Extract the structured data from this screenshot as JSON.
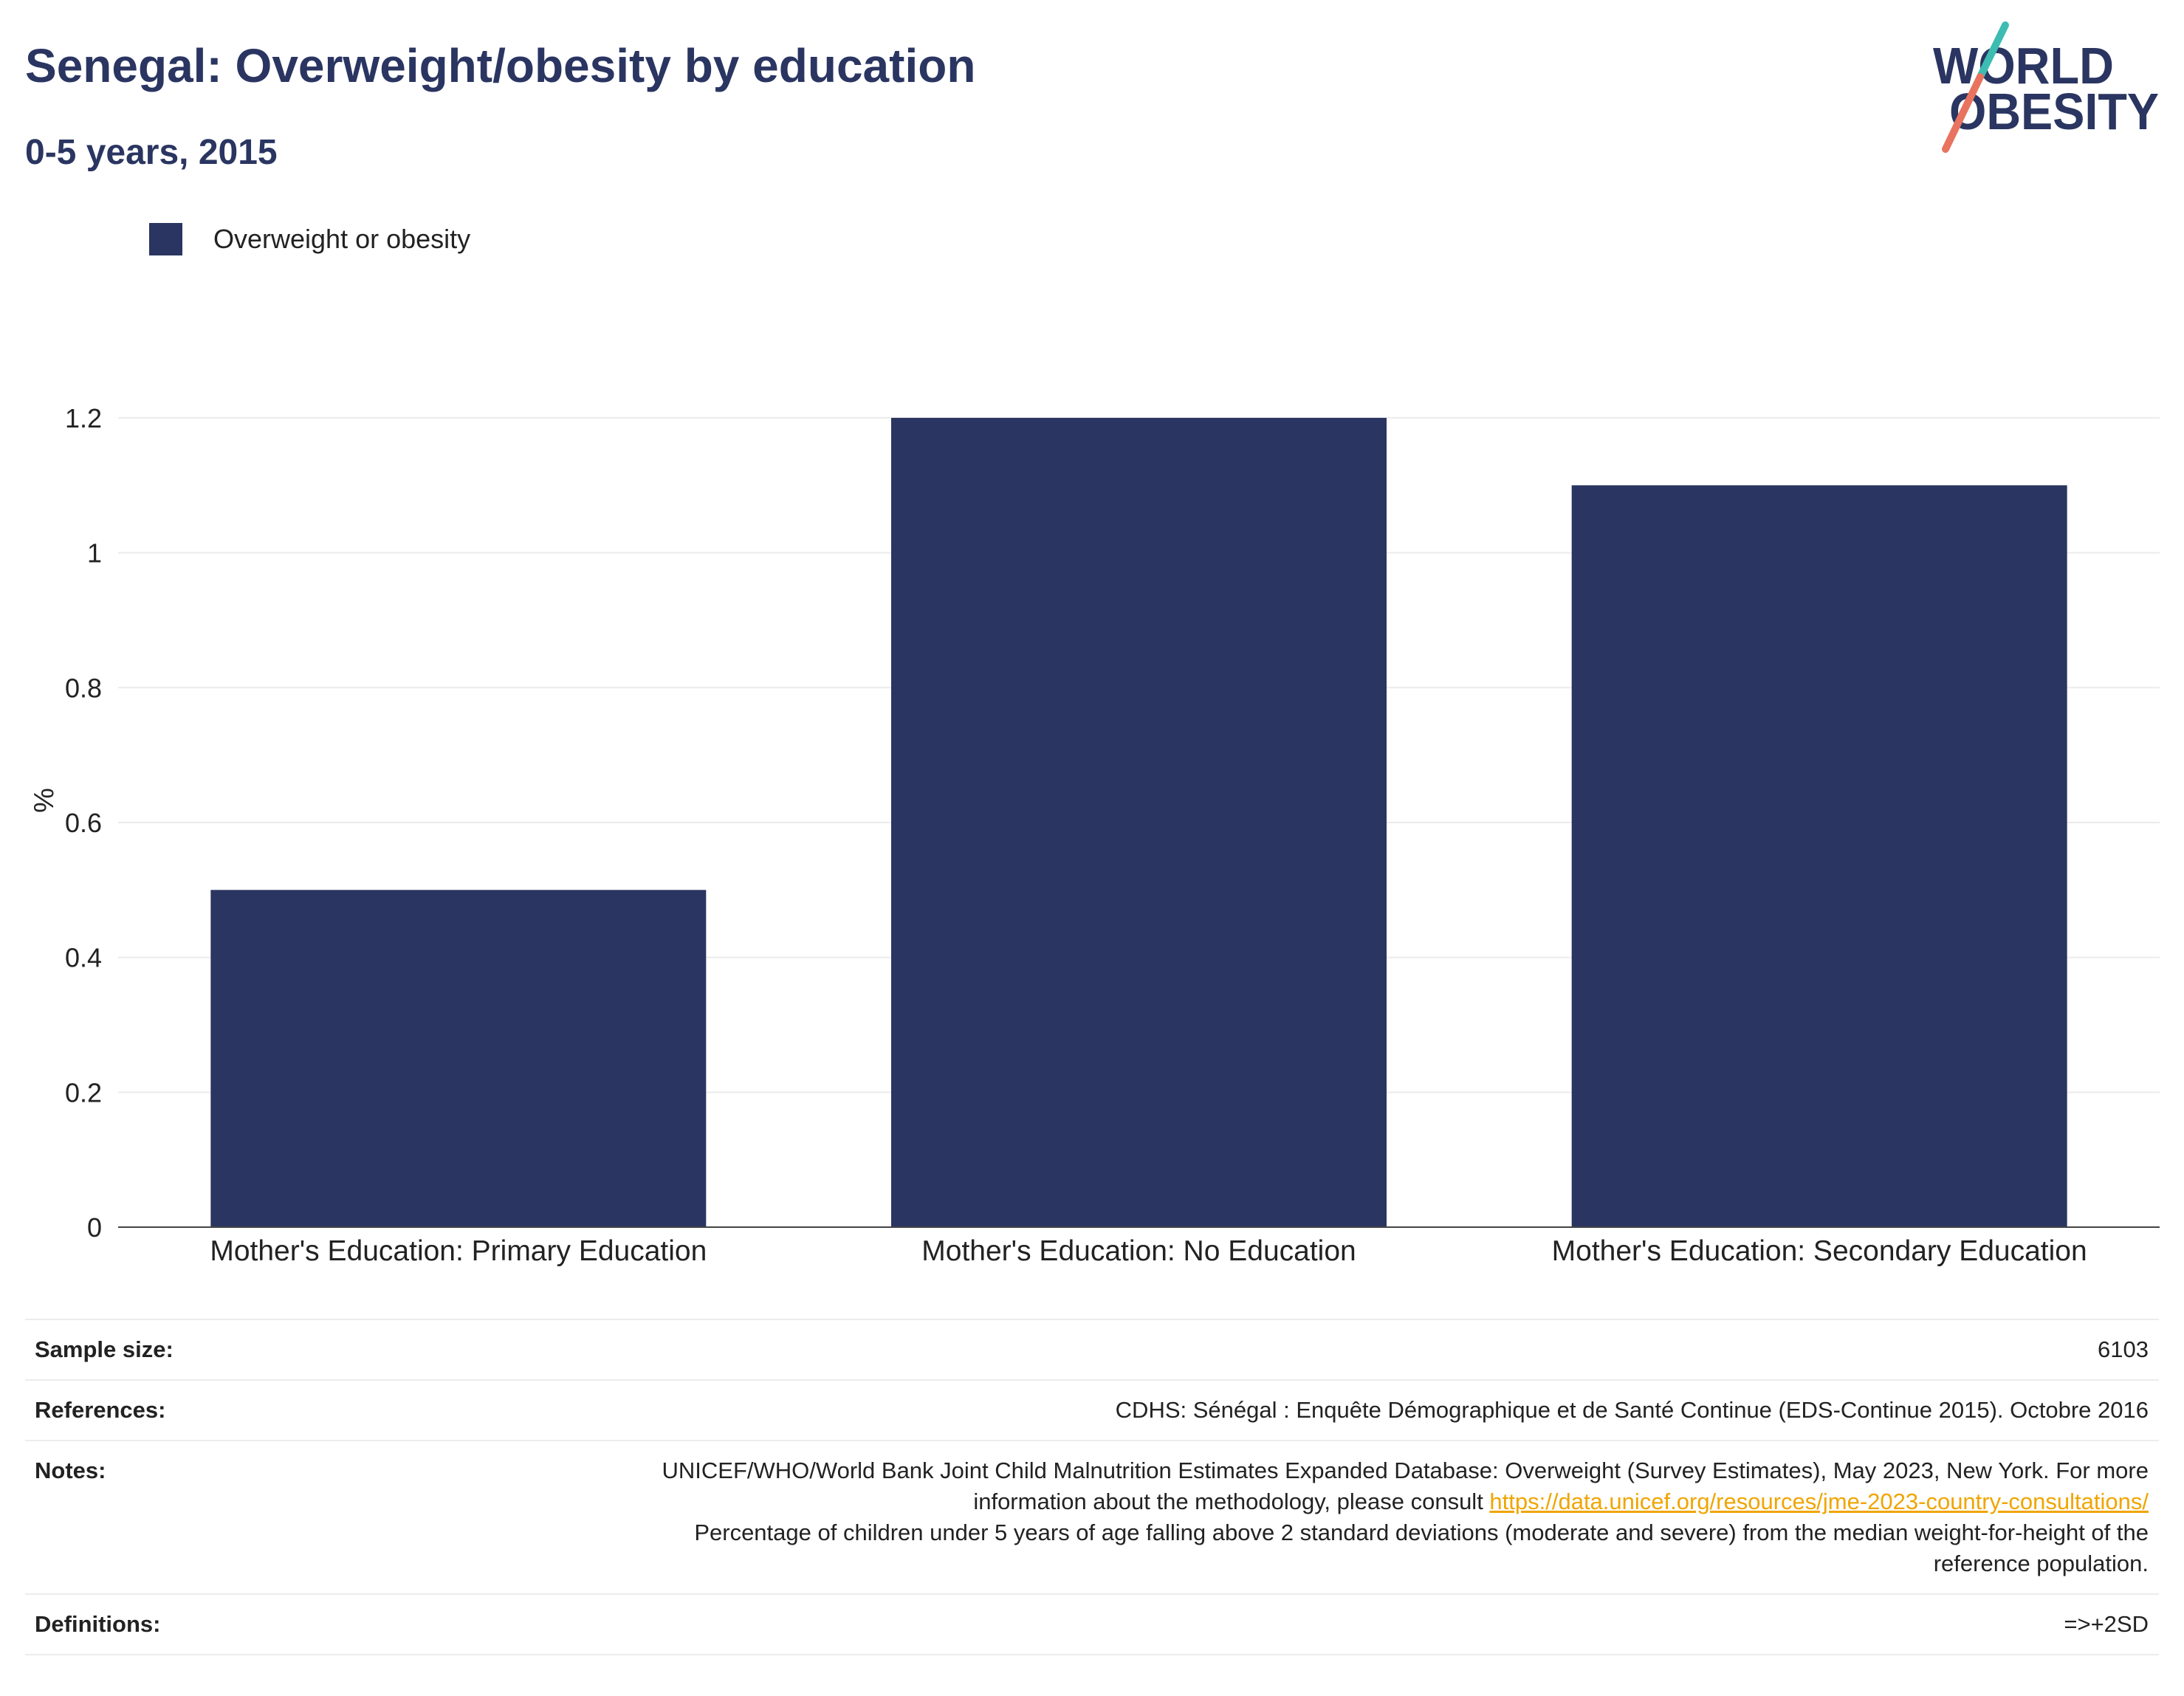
{
  "chart_data": {
    "type": "bar",
    "title": "Senegal: Overweight/obesity by education",
    "subtitle": "0-5 years, 2015",
    "categories": [
      "Mother's Education: Primary Education",
      "Mother's Education: No Education",
      "Mother's Education: Secondary Education"
    ],
    "series": [
      {
        "name": "Overweight or obesity",
        "values": [
          0.5,
          1.2,
          1.1
        ],
        "color": "#2a3561"
      }
    ],
    "ylabel": "%",
    "ylim": [
      0,
      1.27
    ],
    "yticks": [
      0,
      0.2,
      0.4,
      0.6,
      0.8,
      1,
      1.2
    ],
    "ytick_labels": [
      "0",
      "0.2",
      "0.4",
      "0.6",
      "0.8",
      "1",
      "1.2"
    ],
    "grid": true,
    "legend_position": "top-left"
  },
  "logo": {
    "line1": "WORLD",
    "line2": "OBESITY"
  },
  "colors": {
    "brand_navy": "#2a3561",
    "logo_teal": "#3dbdb2",
    "logo_coral": "#e8735f",
    "link": "#f0a500",
    "gridline": "#ebebeb",
    "axis": "#444444"
  },
  "footer": {
    "sample_size": {
      "label": "Sample size:",
      "value": "6103"
    },
    "references": {
      "label": "References:",
      "value": "CDHS: Sénégal : Enquête Démographique et de Santé Continue (EDS-Continue 2015). Octobre 2016"
    },
    "notes": {
      "label": "Notes:",
      "text_before": "UNICEF/WHO/World Bank Joint Child Malnutrition Estimates Expanded Database: Overweight (Survey Estimates), May 2023, New York. For more information about the methodology, please consult ",
      "link": "https://data.unicef.org/resources/jme-2023-country-consultations/",
      "text_after": "Percentage of children under 5 years of age falling above 2 standard deviations (moderate and severe) from the median weight-for-height of the reference population."
    },
    "definitions": {
      "label": "Definitions:",
      "value": "=>+2SD"
    }
  }
}
